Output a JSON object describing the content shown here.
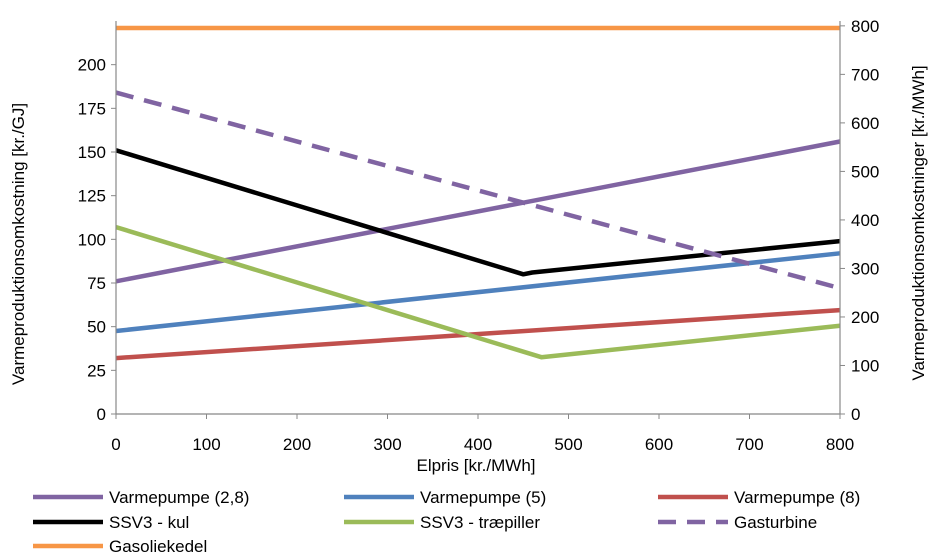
{
  "chart_data": {
    "type": "line",
    "title": "",
    "xlabel": "Elpris [kr./MWh]",
    "ylabel": "Varmeproduktionsomkostning [kr./GJ]",
    "y2label": "Varmeproduktionsomkostninger [kr./MWh]",
    "xlim": [
      0,
      800
    ],
    "ylim": [
      0,
      225
    ],
    "y2lim": [
      0,
      810
    ],
    "x_ticks": [
      "0",
      "100",
      "200",
      "300",
      "400",
      "500",
      "600",
      "700",
      "800"
    ],
    "y_ticks": [
      "0",
      "25",
      "50",
      "75",
      "100",
      "125",
      "150",
      "175",
      "200"
    ],
    "y2_ticks": [
      "0",
      "100",
      "200",
      "300",
      "400",
      "500",
      "600",
      "700",
      "800"
    ],
    "grid": false,
    "legend_position": "bottom",
    "series": [
      {
        "name": "Varmepumpe (2,8)",
        "color": "#8064A2",
        "dash": false,
        "points": [
          [
            0,
            76
          ],
          [
            800,
            156
          ]
        ]
      },
      {
        "name": "Varmepumpe (5)",
        "color": "#4F81BD",
        "dash": false,
        "points": [
          [
            0,
            47.5
          ],
          [
            800,
            92
          ]
        ]
      },
      {
        "name": "Varmepumpe (8)",
        "color": "#C0504D",
        "dash": false,
        "points": [
          [
            0,
            32
          ],
          [
            800,
            59.5
          ]
        ]
      },
      {
        "name": "SSV3 - kul",
        "color": "#000000",
        "dash": false,
        "points": [
          [
            0,
            151
          ],
          [
            450,
            80
          ],
          [
            460,
            81
          ],
          [
            800,
            99
          ]
        ]
      },
      {
        "name": "SSV3 - træpiller",
        "color": "#9BBB59",
        "dash": false,
        "points": [
          [
            0,
            107
          ],
          [
            470,
            32.5
          ],
          [
            800,
            50.5
          ]
        ]
      },
      {
        "name": "Gasturbine",
        "color": "#8064A2",
        "dash": true,
        "points": [
          [
            0,
            184
          ],
          [
            800,
            72
          ]
        ]
      },
      {
        "name": "Gasoliekedel",
        "color": "#F79646",
        "dash": false,
        "points": [
          [
            0,
            221
          ],
          [
            800,
            221
          ]
        ]
      }
    ]
  }
}
